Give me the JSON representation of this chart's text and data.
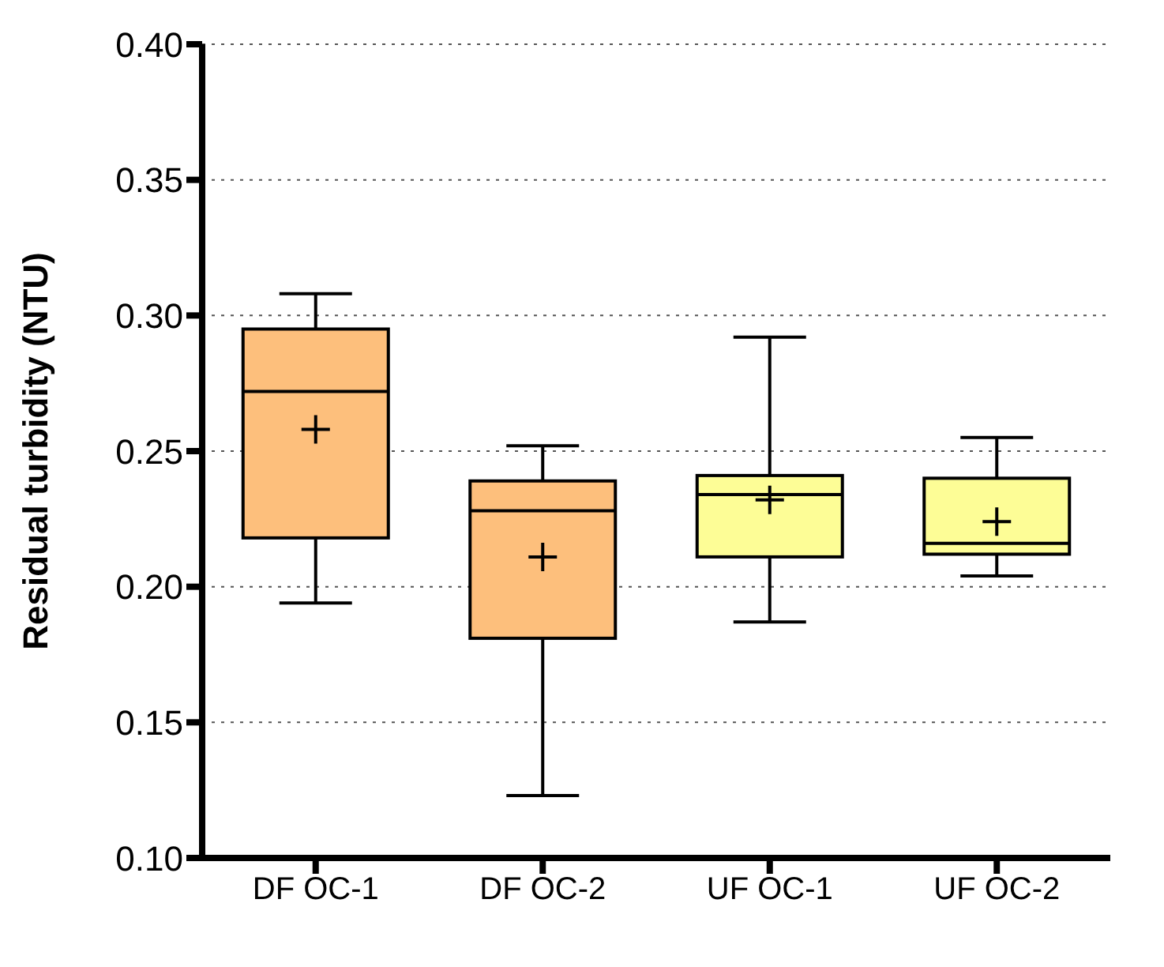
{
  "chart_data": {
    "type": "box",
    "ylabel": "Residual turbidity (NTU)",
    "categories": [
      "DF OC-1",
      "DF OC-2",
      "UF OC-1",
      "UF OC-2"
    ],
    "colors": [
      "#fdbf7c",
      "#fdbf7c",
      "#fdfd96",
      "#fdfd96"
    ],
    "boxes": [
      {
        "low": 0.194,
        "q1": 0.218,
        "median": 0.272,
        "q3": 0.295,
        "high": 0.308,
        "mean": 0.258
      },
      {
        "low": 0.123,
        "q1": 0.181,
        "median": 0.228,
        "q3": 0.239,
        "high": 0.252,
        "mean": 0.211
      },
      {
        "low": 0.187,
        "q1": 0.211,
        "median": 0.234,
        "q3": 0.241,
        "high": 0.292,
        "mean": 0.232
      },
      {
        "low": 0.204,
        "q1": 0.212,
        "median": 0.216,
        "q3": 0.24,
        "high": 0.255,
        "mean": 0.224
      }
    ],
    "ylim": [
      0.1,
      0.4
    ],
    "yticks": [
      {
        "value": 0.1,
        "label": "0.10"
      },
      {
        "value": 0.15,
        "label": "0.15"
      },
      {
        "value": 0.2,
        "label": "0.20"
      },
      {
        "value": 0.25,
        "label": "0.25"
      },
      {
        "value": 0.3,
        "label": "0.30"
      },
      {
        "value": 0.35,
        "label": "0.35"
      },
      {
        "value": 0.4,
        "label": "0.40"
      }
    ],
    "grid": "y"
  }
}
